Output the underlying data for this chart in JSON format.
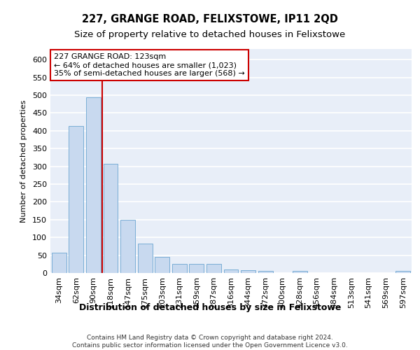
{
  "title": "227, GRANGE ROAD, FELIXSTOWE, IP11 2QD",
  "subtitle": "Size of property relative to detached houses in Felixstowe",
  "xlabel": "Distribution of detached houses by size in Felixstowe",
  "ylabel": "Number of detached properties",
  "categories": [
    "34sqm",
    "62sqm",
    "90sqm",
    "118sqm",
    "147sqm",
    "175sqm",
    "203sqm",
    "231sqm",
    "259sqm",
    "287sqm",
    "316sqm",
    "344sqm",
    "372sqm",
    "400sqm",
    "428sqm",
    "456sqm",
    "484sqm",
    "513sqm",
    "541sqm",
    "569sqm",
    "597sqm"
  ],
  "values": [
    58,
    413,
    495,
    307,
    150,
    82,
    45,
    25,
    25,
    25,
    10,
    8,
    5,
    0,
    5,
    0,
    0,
    0,
    0,
    0,
    5
  ],
  "bar_color": "#c8d9ef",
  "bar_edge_color": "#7aaed6",
  "bar_width": 0.85,
  "vline_color": "#cc0000",
  "vline_linewidth": 1.5,
  "annotation_text": "227 GRANGE ROAD: 123sqm\n← 64% of detached houses are smaller (1,023)\n35% of semi-detached houses are larger (568) →",
  "annotation_box_color": "white",
  "annotation_box_edge_color": "#cc0000",
  "ylim": [
    0,
    630
  ],
  "yticks": [
    0,
    50,
    100,
    150,
    200,
    250,
    300,
    350,
    400,
    450,
    500,
    550,
    600
  ],
  "background_color": "#e8eef8",
  "grid_color": "white",
  "footer": "Contains HM Land Registry data © Crown copyright and database right 2024.\nContains public sector information licensed under the Open Government Licence v3.0.",
  "title_fontsize": 10.5,
  "subtitle_fontsize": 9.5,
  "xlabel_fontsize": 9,
  "ylabel_fontsize": 8,
  "tick_fontsize": 8,
  "annotation_fontsize": 8,
  "footer_fontsize": 6.5
}
